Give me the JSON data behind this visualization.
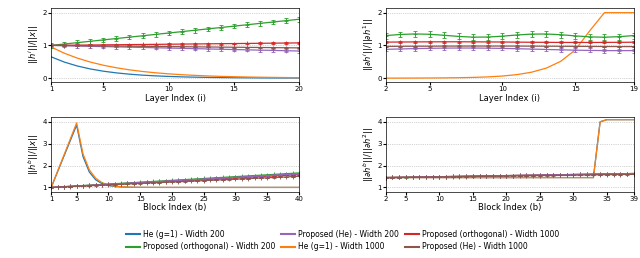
{
  "colors": {
    "blue": "#1f77b4",
    "orange": "#ff7f0e",
    "green": "#2ca02c",
    "red": "#d62728",
    "purple": "#9467bd",
    "brown": "#8c564b"
  },
  "legend_entries_row1": [
    {
      "label": "He (g=1) - Width 200",
      "color": "#1f77b4"
    },
    {
      "label": "Proposed (orthogonal) - Width 200",
      "color": "#2ca02c"
    },
    {
      "label": "Proposed (He) - Width 200",
      "color": "#9467bd"
    }
  ],
  "legend_entries_row2": [
    {
      "label": "He (g=1) - Width 1000",
      "color": "#ff7f0e"
    },
    {
      "label": "Proposed (orthogonal) - Width 1000",
      "color": "#d62728"
    },
    {
      "label": "Proposed (He) - Width 1000",
      "color": "#8c564b"
    }
  ]
}
